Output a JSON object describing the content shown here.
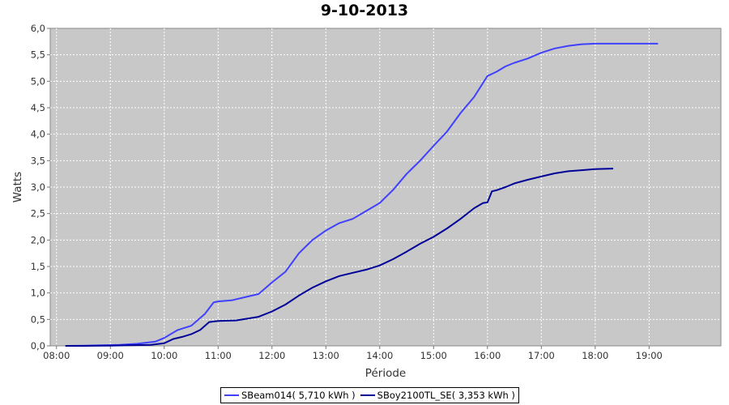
{
  "chart_data": {
    "type": "line",
    "title": "9-10-2013",
    "xlabel": "Période",
    "ylabel": "Watts",
    "x_ticks": [
      "08:00",
      "09:00",
      "10:00",
      "11:00",
      "12:00",
      "13:00",
      "14:00",
      "15:00",
      "16:00",
      "17:00",
      "18:00",
      "19:00"
    ],
    "y_ticks": [
      "0,0",
      "0,5",
      "1,0",
      "1,5",
      "2,0",
      "2,5",
      "3,0",
      "3,5",
      "4,0",
      "4,5",
      "5,0",
      "5,5",
      "6,0"
    ],
    "xlim": [
      "07:53",
      "20:20"
    ],
    "ylim": [
      0,
      6
    ],
    "grid": true,
    "legend_position": "bottom-center",
    "plot_background": "#c8c8c8",
    "series": [
      {
        "name": "SBeam014( 5,710 kWh )",
        "color": "#4040ff",
        "points": [
          [
            "08:10",
            0
          ],
          [
            "08:30",
            0.005
          ],
          [
            "08:50",
            0.01
          ],
          [
            "09:10",
            0.02
          ],
          [
            "09:30",
            0.04
          ],
          [
            "09:50",
            0.08
          ],
          [
            "10:00",
            0.15
          ],
          [
            "10:15",
            0.3
          ],
          [
            "10:30",
            0.38
          ],
          [
            "10:45",
            0.6
          ],
          [
            "10:55",
            0.82
          ],
          [
            "11:00",
            0.84
          ],
          [
            "11:15",
            0.86
          ],
          [
            "11:30",
            0.92
          ],
          [
            "11:45",
            0.98
          ],
          [
            "12:00",
            1.2
          ],
          [
            "12:15",
            1.4
          ],
          [
            "12:30",
            1.75
          ],
          [
            "12:45",
            2.0
          ],
          [
            "13:00",
            2.18
          ],
          [
            "13:15",
            2.32
          ],
          [
            "13:30",
            2.4
          ],
          [
            "13:45",
            2.55
          ],
          [
            "14:00",
            2.7
          ],
          [
            "14:15",
            2.95
          ],
          [
            "14:30",
            3.25
          ],
          [
            "14:45",
            3.5
          ],
          [
            "15:00",
            3.78
          ],
          [
            "15:15",
            4.05
          ],
          [
            "15:30",
            4.4
          ],
          [
            "15:45",
            4.7
          ],
          [
            "16:00",
            5.1
          ],
          [
            "16:10",
            5.18
          ],
          [
            "16:20",
            5.28
          ],
          [
            "16:30",
            5.35
          ],
          [
            "16:45",
            5.43
          ],
          [
            "17:00",
            5.54
          ],
          [
            "17:15",
            5.62
          ],
          [
            "17:30",
            5.67
          ],
          [
            "17:45",
            5.7
          ],
          [
            "18:00",
            5.71
          ],
          [
            "18:30",
            5.71
          ],
          [
            "19:00",
            5.71
          ],
          [
            "19:10",
            5.71
          ]
        ]
      },
      {
        "name": "SBoy2100TL_SE( 3,353 kWh )",
        "color": "#000099",
        "points": [
          [
            "08:10",
            0
          ],
          [
            "08:30",
            0
          ],
          [
            "09:00",
            0.005
          ],
          [
            "09:20",
            0.01
          ],
          [
            "09:45",
            0.02
          ],
          [
            "10:00",
            0.05
          ],
          [
            "10:10",
            0.13
          ],
          [
            "10:20",
            0.17
          ],
          [
            "10:30",
            0.22
          ],
          [
            "10:40",
            0.3
          ],
          [
            "10:50",
            0.45
          ],
          [
            "11:00",
            0.47
          ],
          [
            "11:20",
            0.48
          ],
          [
            "11:45",
            0.55
          ],
          [
            "12:00",
            0.65
          ],
          [
            "12:15",
            0.78
          ],
          [
            "12:30",
            0.95
          ],
          [
            "12:45",
            1.1
          ],
          [
            "13:00",
            1.22
          ],
          [
            "13:15",
            1.32
          ],
          [
            "13:30",
            1.38
          ],
          [
            "13:45",
            1.44
          ],
          [
            "14:00",
            1.52
          ],
          [
            "14:15",
            1.64
          ],
          [
            "14:30",
            1.78
          ],
          [
            "14:45",
            1.93
          ],
          [
            "15:00",
            2.06
          ],
          [
            "15:15",
            2.22
          ],
          [
            "15:30",
            2.4
          ],
          [
            "15:45",
            2.6
          ],
          [
            "15:55",
            2.7
          ],
          [
            "16:00",
            2.71
          ],
          [
            "16:05",
            2.92
          ],
          [
            "16:10",
            2.94
          ],
          [
            "16:20",
            3.0
          ],
          [
            "16:30",
            3.07
          ],
          [
            "16:45",
            3.14
          ],
          [
            "17:00",
            3.2
          ],
          [
            "17:15",
            3.26
          ],
          [
            "17:30",
            3.3
          ],
          [
            "17:45",
            3.32
          ],
          [
            "18:00",
            3.34
          ],
          [
            "18:20",
            3.35
          ]
        ]
      }
    ]
  }
}
